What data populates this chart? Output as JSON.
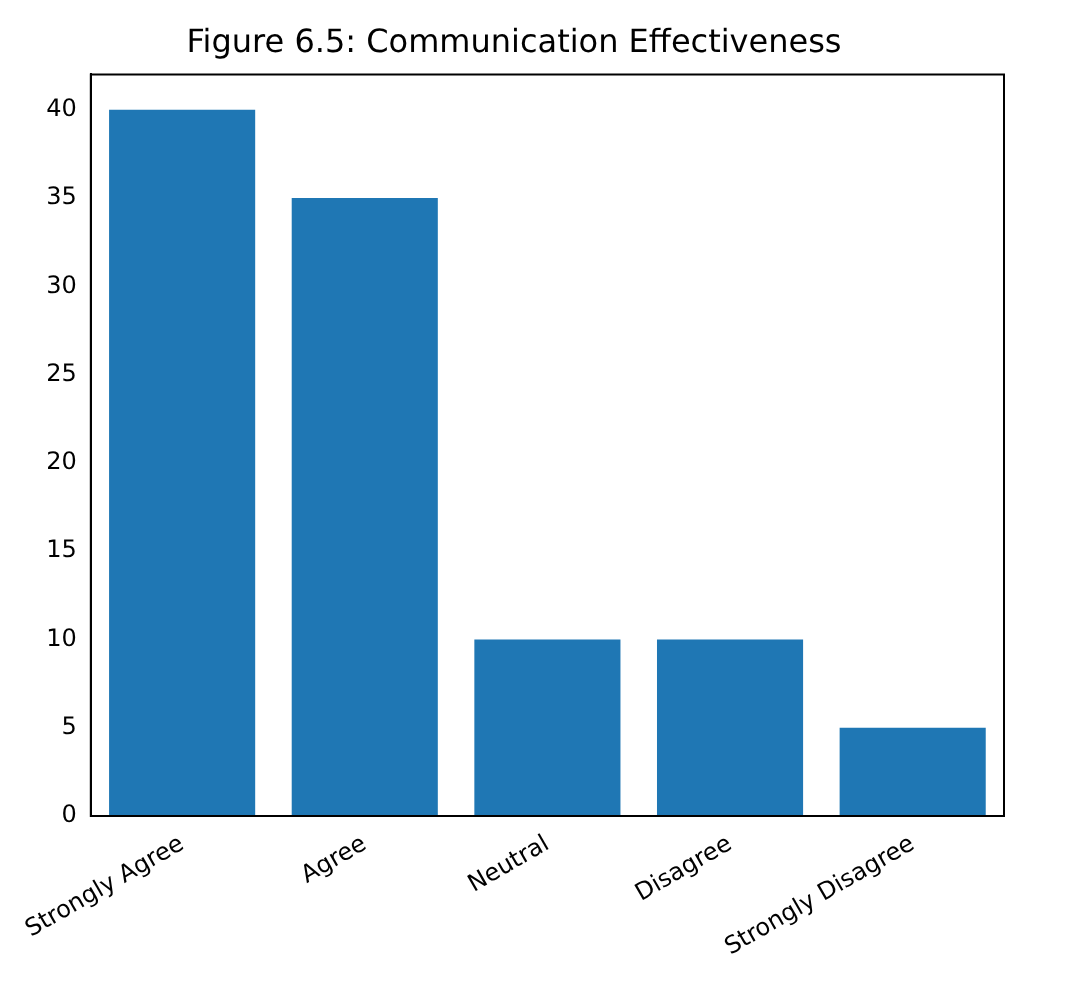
{
  "chart_data": {
    "type": "bar",
    "title": "Figure 6.5: Communication Effectiveness",
    "categories": [
      "Strongly Agree",
      "Agree",
      "Neutral",
      "Disagree",
      "Strongly Disagree"
    ],
    "values": [
      40,
      35,
      10,
      10,
      5
    ],
    "color": "#1f77b4",
    "ylim": [
      0,
      42
    ],
    "yticks": [
      0,
      5,
      10,
      15,
      20,
      25,
      30,
      35,
      40
    ],
    "grid": false,
    "legend": false
  }
}
